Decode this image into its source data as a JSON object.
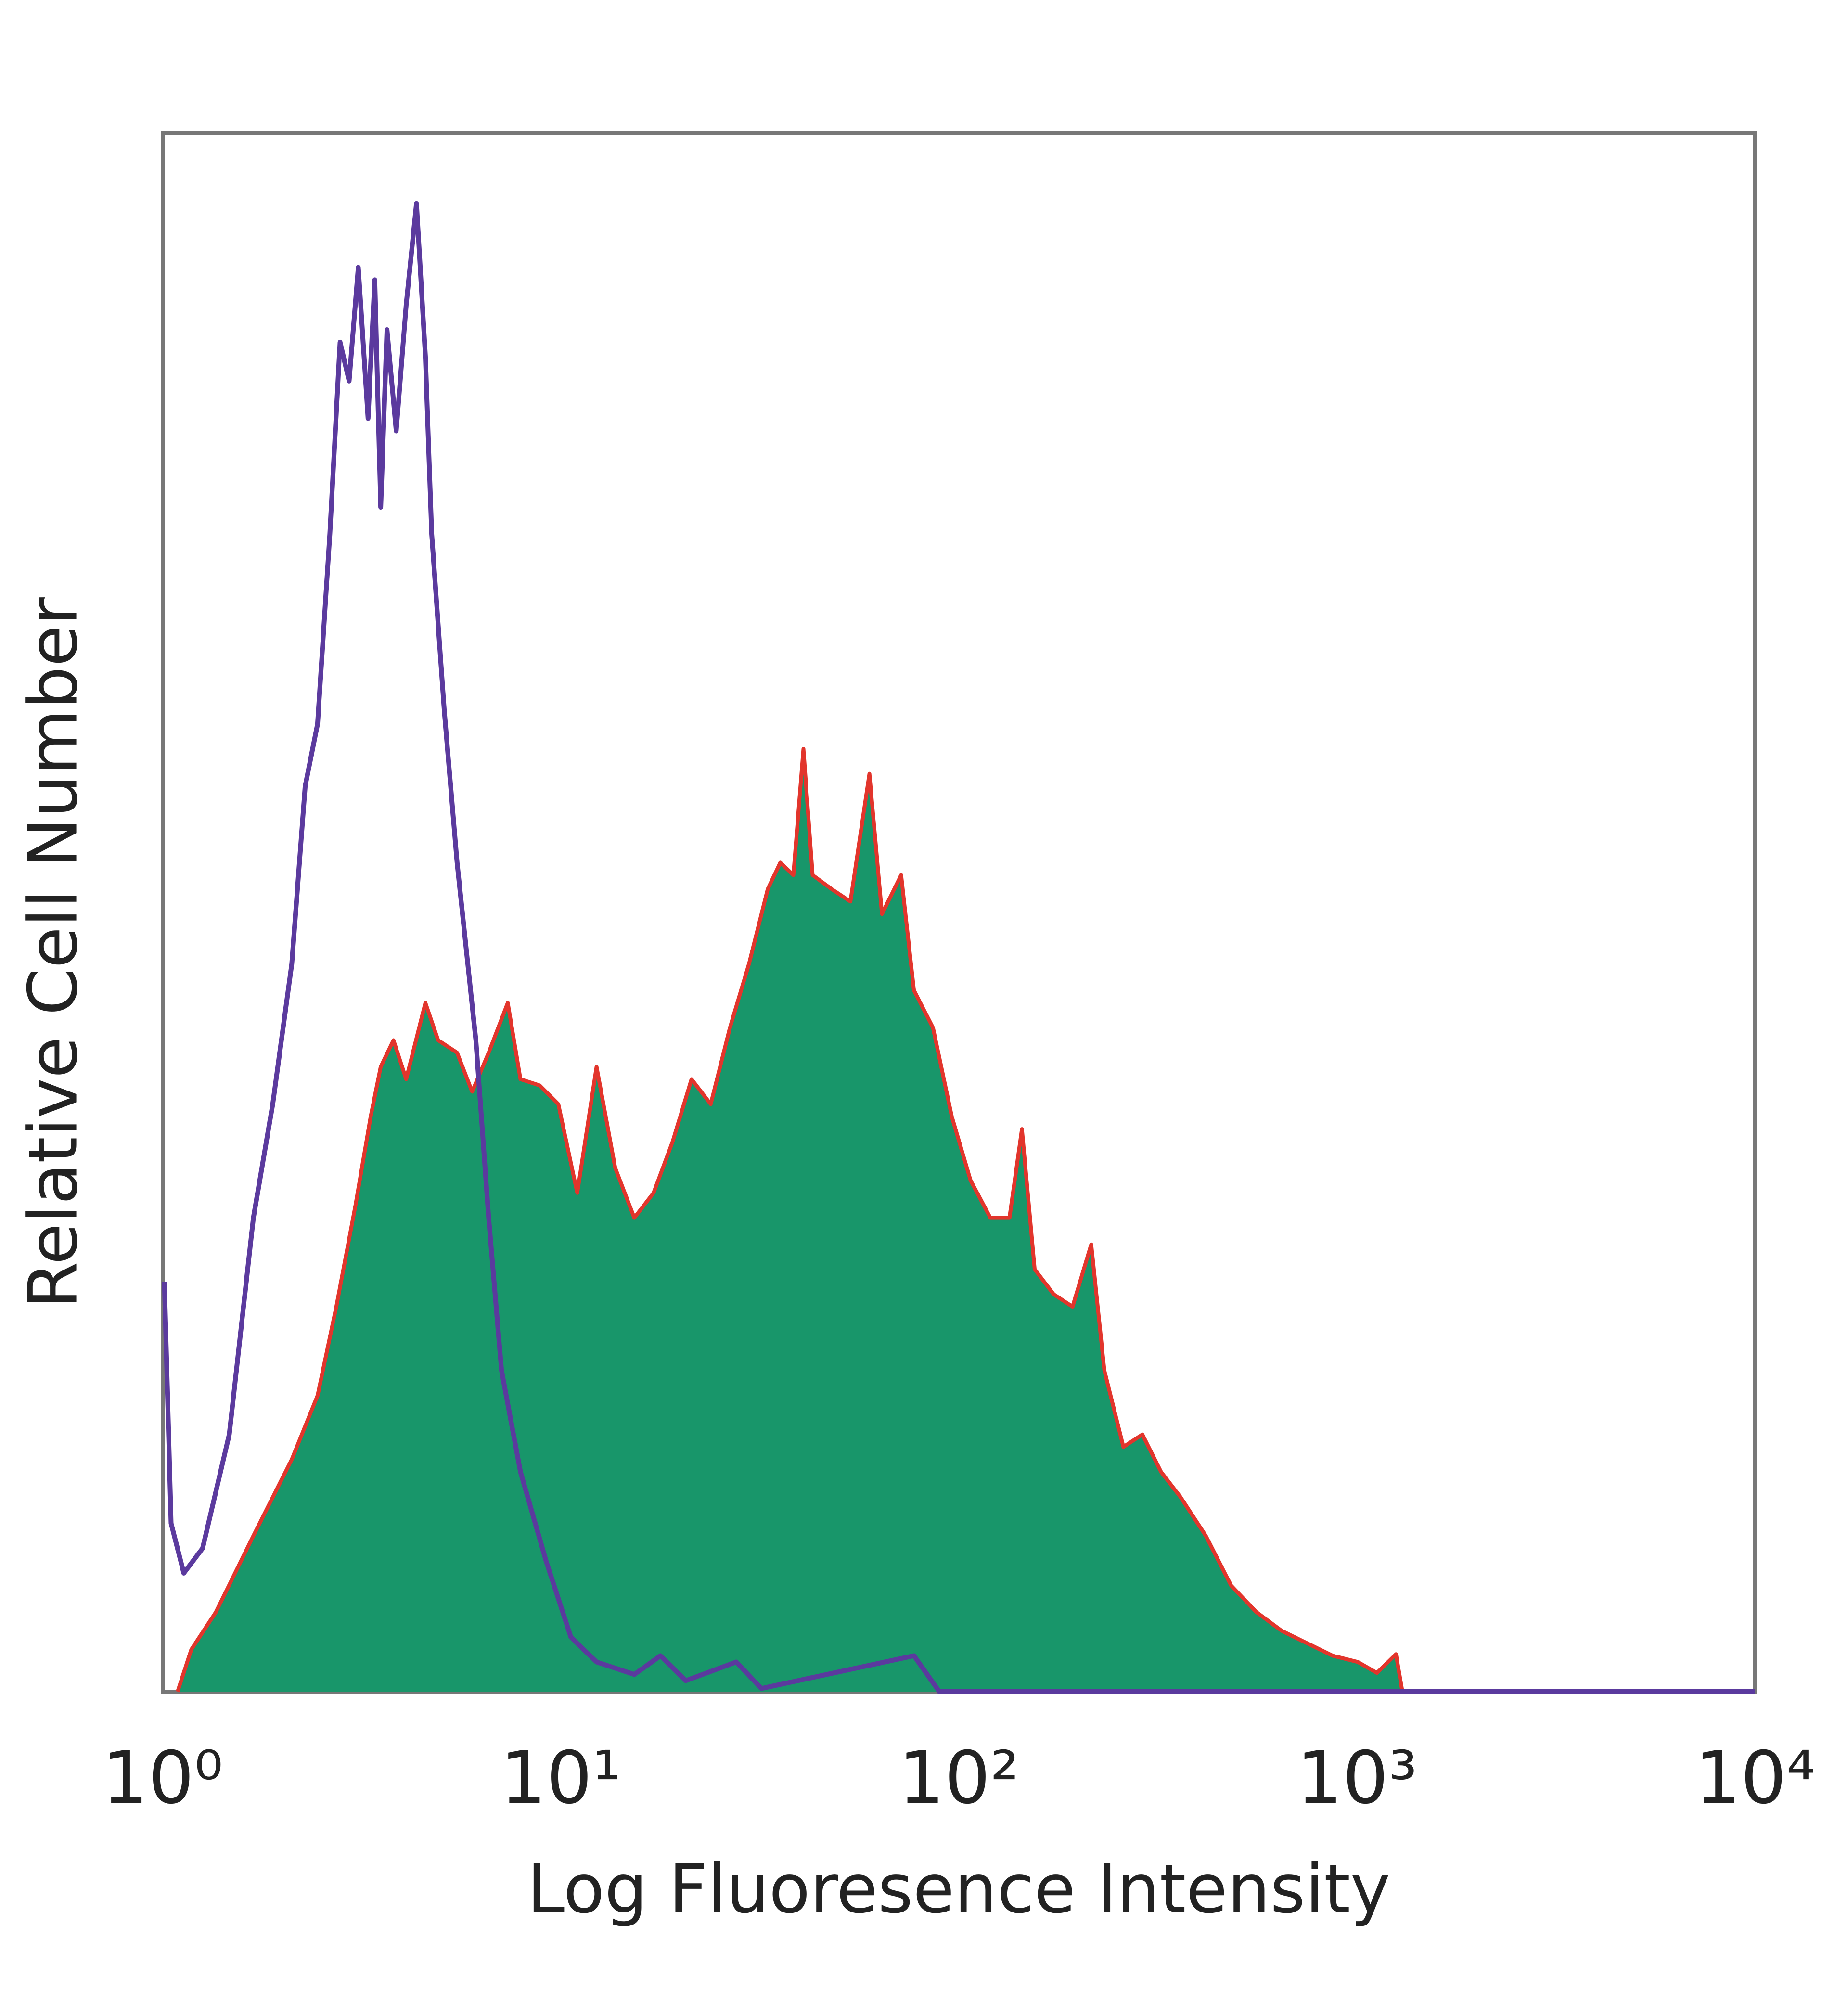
{
  "chart_data": {
    "type": "area",
    "x_label": "Log Fluoresence Intensity",
    "y_label": "Relative Cell Number",
    "xscale": "log",
    "xlim": [
      1,
      10000
    ],
    "ylim": [
      0,
      100
    ],
    "xticks": [
      {
        "value": 1,
        "label": "10⁰"
      },
      {
        "value": 10,
        "label": "10¹"
      },
      {
        "value": 100,
        "label": "10²"
      },
      {
        "value": 1000,
        "label": "10³"
      },
      {
        "value": 10000,
        "label": "10⁴"
      }
    ],
    "grid": false,
    "series": [
      {
        "color": "#18966a",
        "edge_color": "#e2352c",
        "fill": true,
        "x": [
          1.09,
          1.18,
          1.36,
          1.69,
          2.11,
          2.45,
          2.73,
          3.05,
          3.33,
          3.53,
          3.8,
          4.09,
          4.57,
          4.92,
          5.49,
          5.99,
          6.59,
          7.36,
          7.92,
          8.85,
          9.86,
          11.0,
          12.3,
          13.7,
          15.3,
          17.1,
          19.1,
          21.3,
          23.8,
          26.6,
          29.7,
          33.1,
          35.6,
          38.4,
          40.7,
          42.9,
          47.9,
          53.4,
          59.6,
          64.1,
          71.6,
          77.1,
          86.1,
          96.0,
          107,
          120,
          134,
          144,
          155,
          173,
          193,
          215,
          232,
          259,
          289,
          322,
          360,
          417,
          483,
          559,
          647,
          750,
          869,
          1005,
          1122,
          1253,
          1300
        ],
        "values": [
          0,
          2.7,
          5.1,
          10.0,
          14.9,
          19.0,
          24.7,
          31.2,
          36.9,
          40.1,
          41.8,
          39.3,
          44.2,
          41.8,
          41.0,
          38.5,
          41.0,
          44.2,
          39.3,
          38.9,
          37.7,
          32.0,
          40.1,
          33.6,
          30.4,
          32.0,
          35.3,
          39.3,
          37.7,
          42.6,
          46.7,
          51.5,
          53.2,
          52.4,
          60.5,
          52.4,
          51.5,
          50.7,
          58.9,
          49.9,
          52.4,
          45.0,
          42.6,
          36.9,
          32.8,
          30.4,
          30.4,
          36.1,
          27.1,
          25.5,
          24.7,
          28.7,
          20.6,
          15.7,
          16.5,
          14.1,
          12.5,
          10.0,
          6.8,
          5.1,
          3.9,
          3.1,
          2.3,
          1.9,
          1.2,
          2.4,
          0
        ]
      },
      {
        "color": "#5b3a9e",
        "fill": false,
        "x": [
          1.01,
          1.05,
          1.13,
          1.26,
          1.47,
          1.69,
          1.89,
          2.11,
          2.28,
          2.45,
          2.63,
          2.79,
          2.94,
          3.1,
          3.28,
          3.41,
          3.53,
          3.66,
          3.86,
          4.09,
          4.34,
          4.57,
          4.74,
          5.1,
          5.49,
          6.12,
          6.59,
          7.1,
          7.92,
          9.18,
          10.6,
          12.3,
          15.3,
          17.8,
          20.6,
          27.6,
          31.9,
          77.1,
          89.3,
          289,
          10000
        ],
        "values": [
          26.3,
          10.8,
          7.6,
          9.2,
          16.5,
          30.4,
          37.7,
          46.7,
          58.1,
          62.1,
          74.3,
          86.6,
          84.1,
          91.4,
          81.7,
          90.6,
          76.0,
          87.4,
          80.9,
          89.0,
          95.5,
          85.7,
          74.3,
          62.9,
          53.2,
          41.8,
          30.4,
          20.6,
          14.1,
          8.4,
          3.5,
          1.9,
          1.1,
          2.3,
          0.7,
          1.9,
          0.2,
          2.3,
          0,
          0,
          0
        ]
      }
    ]
  }
}
